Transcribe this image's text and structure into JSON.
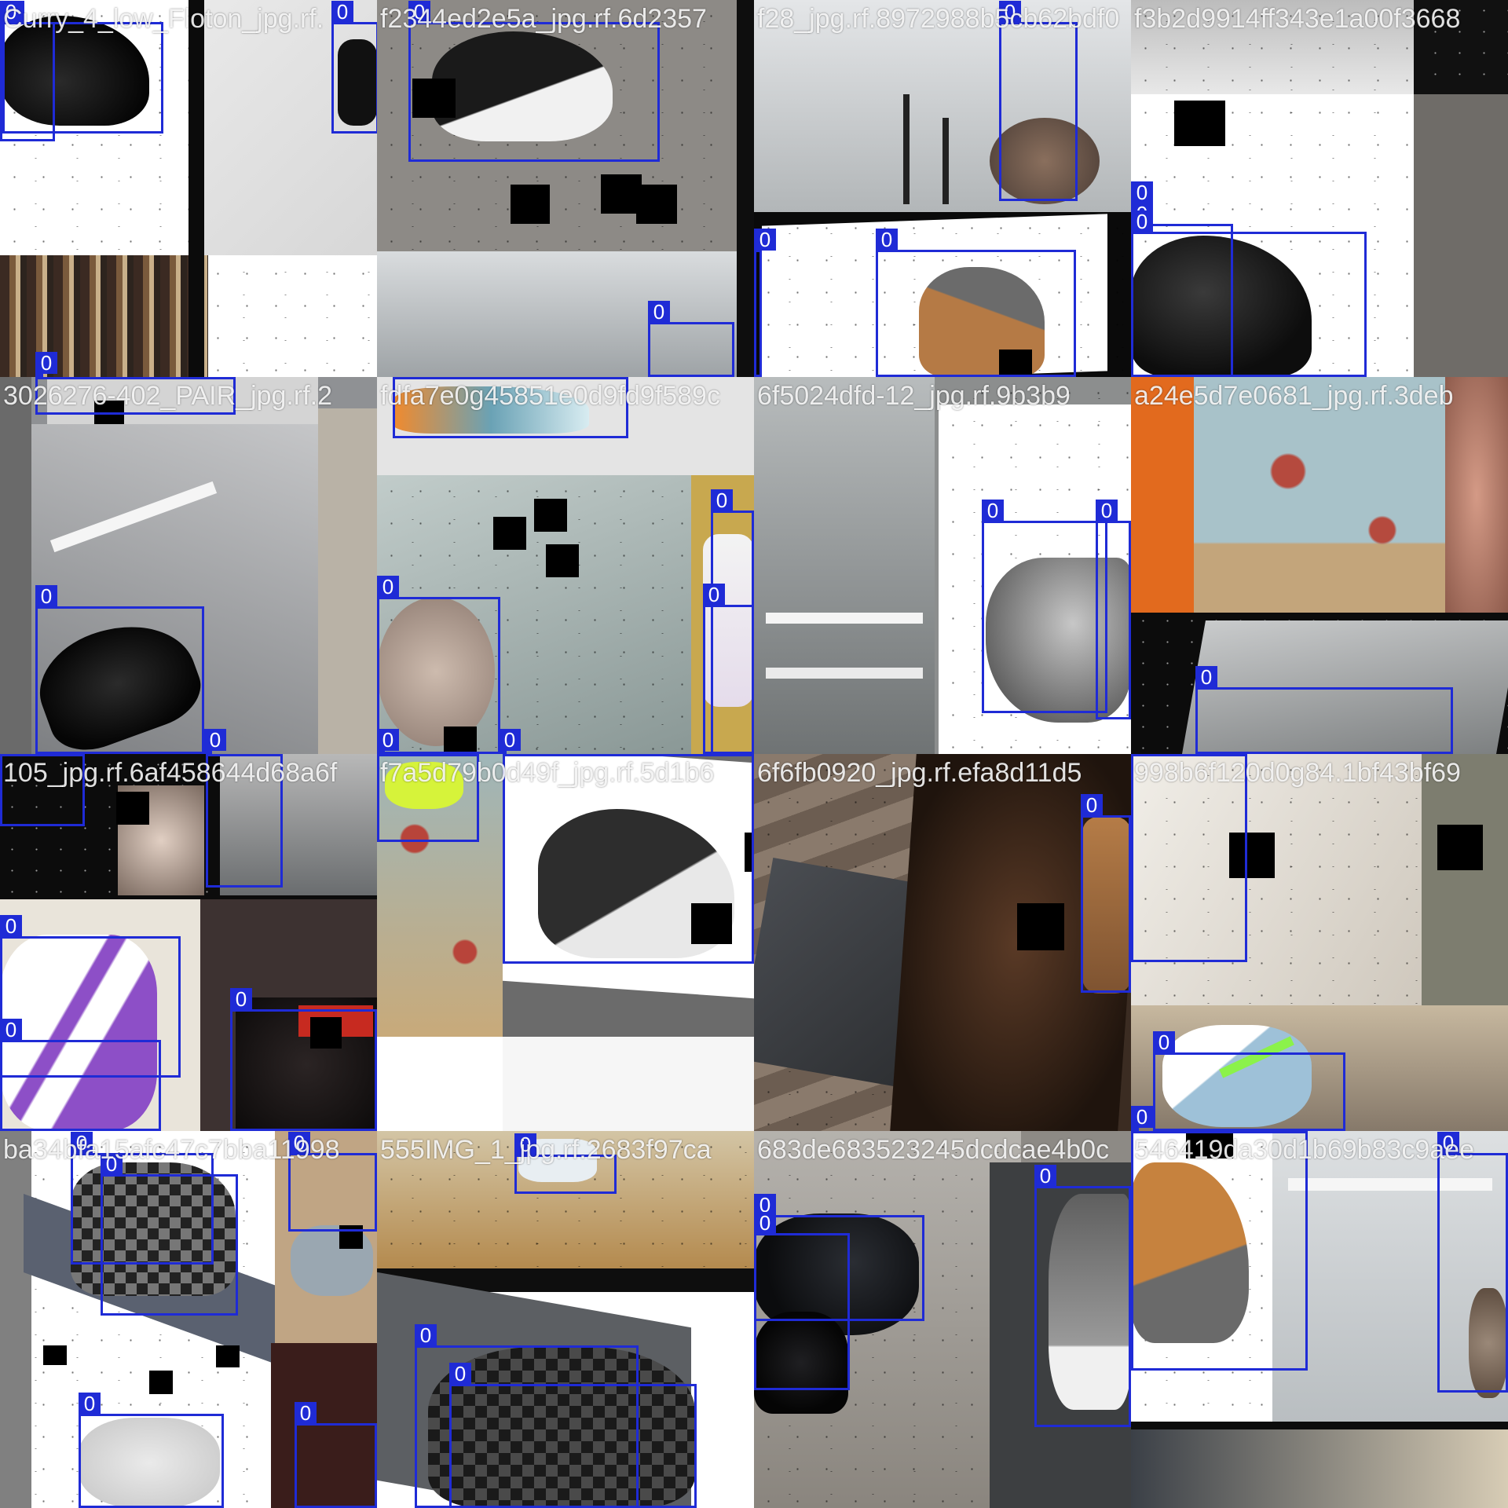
{
  "mosaic": {
    "box_color": "#1f2bd6",
    "class_label": "0",
    "tiles": [
      {
        "title": "Curry_4_low_Floton_jpg.rf.",
        "boxes": 4
      },
      {
        "title": "f2344ed2e5a_jpg.rf.6d2357",
        "boxes": 2
      },
      {
        "title": "f28_jpg.rf.8972988b5cb62bdf0",
        "boxes": 3
      },
      {
        "title": "f3b2d9914ff343e1a00f3668",
        "boxes": 3
      },
      {
        "title": "3026276-402_PAIR_jpg.rf.2",
        "boxes": 3
      },
      {
        "title": "fdfa7e0g45851e0d9fd9f589c",
        "boxes": 6
      },
      {
        "title": "6f5024dfd-12_jpg.rf.9b3b9",
        "boxes": 2
      },
      {
        "title": "a24e5d7e0681_jpg.rf.3deb",
        "boxes": 1
      },
      {
        "title": "105_jpg.rf.6af458644d68a6f",
        "boxes": 5
      },
      {
        "title": "f7a5d79b0d49f_jpg.rf.5d1b6",
        "boxes": 2
      },
      {
        "title": "6f6fb0920_jpg.rf.efa8d11d5",
        "boxes": 1
      },
      {
        "title": "998b6f120d0g84.1bf43bf69",
        "boxes": 3
      },
      {
        "title": "ba34bfa15afc47c7bba11998",
        "boxes": 5
      },
      {
        "title": "555IMG_1_jpg.rf.2683f97ca",
        "boxes": 3
      },
      {
        "title": "683de683523245dcdcae4b0c",
        "boxes": 3
      },
      {
        "title": "546419da30d1b69b83c9aee",
        "boxes": 2
      }
    ]
  }
}
